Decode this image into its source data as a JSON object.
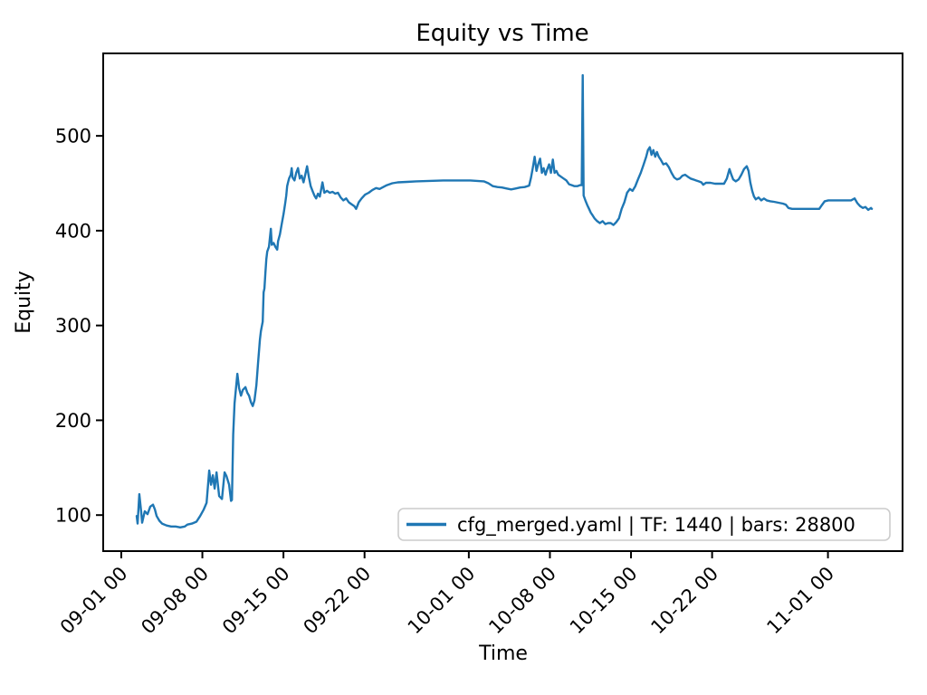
{
  "chart_data": {
    "type": "line",
    "title": "Equity vs Time",
    "xlabel": "Time",
    "ylabel": "Equity",
    "legend": {
      "position": "lower right",
      "entries": [
        "cfg_merged.yaml | TF: 1440 | bars: 28800"
      ]
    },
    "grid": false,
    "line_color": "#1f77b4",
    "axis_color": "#000000",
    "background_color": "#ffffff",
    "x_unit": "days since first x tick (09-01 00)",
    "xlim": [
      -1.56,
      67.44
    ],
    "ylim": [
      62,
      587
    ],
    "y_ticks": [
      100,
      200,
      300,
      400,
      500
    ],
    "x_ticks": [
      {
        "d": 0,
        "label": "09-01 00"
      },
      {
        "d": 7,
        "label": "09-08 00"
      },
      {
        "d": 14,
        "label": "09-15 00"
      },
      {
        "d": 21,
        "label": "09-22 00"
      },
      {
        "d": 30,
        "label": "10-01 00"
      },
      {
        "d": 37,
        "label": "10-08 00"
      },
      {
        "d": 44,
        "label": "10-15 00"
      },
      {
        "d": 51,
        "label": "10-22 00"
      },
      {
        "d": 61,
        "label": "11-01 00"
      }
    ],
    "series": [
      {
        "name": "cfg_merged.yaml | TF: 1440 | bars: 28800",
        "color": "#1f77b4",
        "points": [
          [
            1.33,
            99
          ],
          [
            1.41,
            91
          ],
          [
            1.56,
            122
          ],
          [
            1.72,
            103
          ],
          [
            1.8,
            92
          ],
          [
            2.03,
            104
          ],
          [
            2.27,
            101
          ],
          [
            2.5,
            109
          ],
          [
            2.74,
            111
          ],
          [
            2.9,
            106
          ],
          [
            3.05,
            99
          ],
          [
            3.29,
            94
          ],
          [
            3.52,
            91
          ],
          [
            3.91,
            89
          ],
          [
            4.3,
            88
          ],
          [
            4.69,
            88
          ],
          [
            5.09,
            87
          ],
          [
            5.48,
            88
          ],
          [
            5.71,
            90
          ],
          [
            6.1,
            91
          ],
          [
            6.49,
            93
          ],
          [
            6.81,
            99
          ],
          [
            7.12,
            106
          ],
          [
            7.36,
            113
          ],
          [
            7.59,
            147
          ],
          [
            7.75,
            132
          ],
          [
            7.9,
            142
          ],
          [
            8.06,
            128
          ],
          [
            8.22,
            145
          ],
          [
            8.45,
            120
          ],
          [
            8.69,
            117
          ],
          [
            8.92,
            145
          ],
          [
            9.08,
            141
          ],
          [
            9.31,
            132
          ],
          [
            9.47,
            115
          ],
          [
            9.55,
            116
          ],
          [
            9.66,
            185
          ],
          [
            9.78,
            218
          ],
          [
            10.02,
            249
          ],
          [
            10.17,
            234
          ],
          [
            10.33,
            226
          ],
          [
            10.49,
            232
          ],
          [
            10.72,
            235
          ],
          [
            10.88,
            229
          ],
          [
            11.03,
            226
          ],
          [
            11.19,
            219
          ],
          [
            11.35,
            215
          ],
          [
            11.5,
            221
          ],
          [
            11.66,
            237
          ],
          [
            11.81,
            261
          ],
          [
            11.97,
            285
          ],
          [
            12.05,
            294
          ],
          [
            12.13,
            299
          ],
          [
            12.21,
            304
          ],
          [
            12.29,
            335
          ],
          [
            12.36,
            339
          ],
          [
            12.44,
            356
          ],
          [
            12.52,
            370
          ],
          [
            12.6,
            378
          ],
          [
            12.75,
            383
          ],
          [
            12.91,
            402
          ],
          [
            12.99,
            385
          ],
          [
            13.15,
            387
          ],
          [
            13.3,
            383
          ],
          [
            13.46,
            380
          ],
          [
            13.54,
            389
          ],
          [
            13.69,
            396
          ],
          [
            13.85,
            407
          ],
          [
            14.01,
            418
          ],
          [
            14.08,
            423
          ],
          [
            14.16,
            430
          ],
          [
            14.24,
            437
          ],
          [
            14.32,
            447
          ],
          [
            14.4,
            451
          ],
          [
            14.48,
            455
          ],
          [
            14.63,
            459
          ],
          [
            14.71,
            466
          ],
          [
            14.79,
            456
          ],
          [
            14.95,
            453
          ],
          [
            15.1,
            461
          ],
          [
            15.26,
            466
          ],
          [
            15.41,
            455
          ],
          [
            15.57,
            458
          ],
          [
            15.73,
            451
          ],
          [
            15.88,
            459
          ],
          [
            16.04,
            468
          ],
          [
            16.2,
            456
          ],
          [
            16.35,
            447
          ],
          [
            16.51,
            442
          ],
          [
            16.67,
            437
          ],
          [
            16.82,
            434
          ],
          [
            16.98,
            439
          ],
          [
            17.14,
            436
          ],
          [
            17.37,
            451
          ],
          [
            17.53,
            440
          ],
          [
            17.76,
            442
          ],
          [
            18,
            440
          ],
          [
            18.23,
            441
          ],
          [
            18.47,
            439
          ],
          [
            18.7,
            440
          ],
          [
            18.94,
            435
          ],
          [
            19.17,
            432
          ],
          [
            19.41,
            434
          ],
          [
            19.64,
            430
          ],
          [
            19.87,
            428
          ],
          [
            20.11,
            426
          ],
          [
            20.27,
            423
          ],
          [
            20.5,
            430
          ],
          [
            20.74,
            434
          ],
          [
            21.05,
            438
          ],
          [
            21.36,
            440
          ],
          [
            21.68,
            443
          ],
          [
            21.99,
            445
          ],
          [
            22.3,
            444
          ],
          [
            22.61,
            446
          ],
          [
            22.93,
            448
          ],
          [
            23.4,
            450
          ],
          [
            23.87,
            451
          ],
          [
            24.65,
            451.5
          ],
          [
            25.43,
            452
          ],
          [
            26.6,
            452.5
          ],
          [
            27.78,
            453
          ],
          [
            28.95,
            453
          ],
          [
            30.13,
            453
          ],
          [
            31.3,
            452
          ],
          [
            31.69,
            450
          ],
          [
            32.08,
            447
          ],
          [
            32.47,
            446
          ],
          [
            32.86,
            445.5
          ],
          [
            33.26,
            444.5
          ],
          [
            33.65,
            443.5
          ],
          [
            34.04,
            444.5
          ],
          [
            34.43,
            445.5
          ],
          [
            34.82,
            446
          ],
          [
            35.21,
            447.5
          ],
          [
            35.37,
            456
          ],
          [
            35.52,
            466
          ],
          [
            35.68,
            478
          ],
          [
            35.84,
            463
          ],
          [
            35.99,
            470
          ],
          [
            36.15,
            476
          ],
          [
            36.31,
            461
          ],
          [
            36.46,
            466
          ],
          [
            36.62,
            459
          ],
          [
            36.78,
            465
          ],
          [
            36.93,
            470
          ],
          [
            37.09,
            461
          ],
          [
            37.25,
            475
          ],
          [
            37.4,
            461
          ],
          [
            37.56,
            463
          ],
          [
            37.72,
            459
          ],
          [
            37.95,
            457
          ],
          [
            38.18,
            455
          ],
          [
            38.42,
            453
          ],
          [
            38.65,
            449
          ],
          [
            38.89,
            448
          ],
          [
            39.12,
            447
          ],
          [
            39.36,
            447
          ],
          [
            39.59,
            448
          ],
          [
            39.75,
            448
          ],
          [
            39.83,
            564
          ],
          [
            39.91,
            437
          ],
          [
            40.06,
            432
          ],
          [
            40.22,
            427
          ],
          [
            40.38,
            423
          ],
          [
            40.53,
            419
          ],
          [
            40.69,
            416
          ],
          [
            40.85,
            413
          ],
          [
            41.08,
            410
          ],
          [
            41.31,
            408
          ],
          [
            41.55,
            410
          ],
          [
            41.78,
            407
          ],
          [
            42.02,
            408
          ],
          [
            42.25,
            408
          ],
          [
            42.49,
            406
          ],
          [
            42.72,
            409
          ],
          [
            42.96,
            413
          ],
          [
            43.19,
            423
          ],
          [
            43.43,
            430
          ],
          [
            43.66,
            440
          ],
          [
            43.9,
            444
          ],
          [
            44.13,
            442
          ],
          [
            44.37,
            447
          ],
          [
            44.6,
            454
          ],
          [
            44.84,
            461
          ],
          [
            45.07,
            469
          ],
          [
            45.31,
            478
          ],
          [
            45.46,
            485
          ],
          [
            45.62,
            488
          ],
          [
            45.77,
            480
          ],
          [
            45.93,
            485
          ],
          [
            46.09,
            478
          ],
          [
            46.24,
            483
          ],
          [
            46.4,
            478
          ],
          [
            46.56,
            475
          ],
          [
            46.79,
            470
          ],
          [
            47.03,
            471
          ],
          [
            47.26,
            467
          ],
          [
            47.5,
            461
          ],
          [
            47.73,
            456
          ],
          [
            47.97,
            454
          ],
          [
            48.2,
            455
          ],
          [
            48.44,
            458
          ],
          [
            48.67,
            459
          ],
          [
            48.9,
            457
          ],
          [
            49.14,
            455
          ],
          [
            49.37,
            454
          ],
          [
            49.61,
            453
          ],
          [
            49.84,
            452
          ],
          [
            50.08,
            451
          ],
          [
            50.23,
            448.5
          ],
          [
            50.47,
            450.5
          ],
          [
            50.86,
            450.5
          ],
          [
            51.25,
            449.5
          ],
          [
            51.64,
            449.5
          ],
          [
            52.03,
            449.5
          ],
          [
            52.27,
            455
          ],
          [
            52.5,
            465
          ],
          [
            52.66,
            459
          ],
          [
            52.82,
            454
          ],
          [
            53.05,
            452
          ],
          [
            53.29,
            454
          ],
          [
            53.52,
            459
          ],
          [
            53.76,
            465
          ],
          [
            53.99,
            468
          ],
          [
            54.15,
            463
          ],
          [
            54.3,
            451
          ],
          [
            54.46,
            442
          ],
          [
            54.62,
            436
          ],
          [
            54.77,
            433
          ],
          [
            55.01,
            435
          ],
          [
            55.24,
            432
          ],
          [
            55.48,
            434
          ],
          [
            55.71,
            432
          ],
          [
            56.03,
            431
          ],
          [
            56.34,
            430.5
          ],
          [
            56.73,
            429.5
          ],
          [
            57.12,
            428.5
          ],
          [
            57.36,
            427.5
          ],
          [
            57.59,
            424
          ],
          [
            57.9,
            423
          ],
          [
            58.29,
            423
          ],
          [
            58.69,
            423
          ],
          [
            59.08,
            423
          ],
          [
            59.47,
            423
          ],
          [
            59.86,
            423
          ],
          [
            60.25,
            423
          ],
          [
            60.48,
            427
          ],
          [
            60.72,
            431
          ],
          [
            61.03,
            432
          ],
          [
            61.42,
            432
          ],
          [
            61.82,
            432
          ],
          [
            62.21,
            432
          ],
          [
            62.6,
            432
          ],
          [
            62.99,
            432
          ],
          [
            63.3,
            434
          ],
          [
            63.54,
            429
          ],
          [
            63.77,
            426
          ],
          [
            64.01,
            424
          ],
          [
            64.24,
            425
          ],
          [
            64.48,
            422
          ],
          [
            64.71,
            424
          ],
          [
            64.79,
            423
          ]
        ]
      }
    ]
  }
}
